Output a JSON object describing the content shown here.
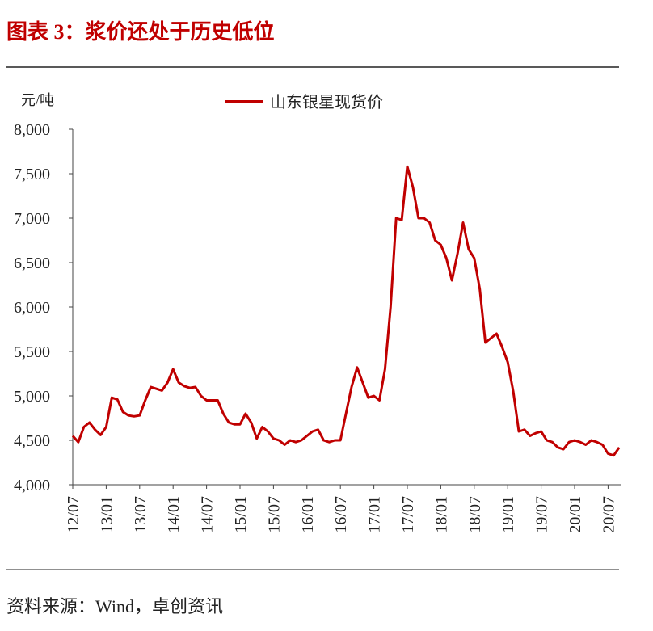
{
  "title": "图表 3：浆价还处于历史低位",
  "source": "资料来源：Wind，卓创资讯",
  "chart_data": {
    "type": "line",
    "y_unit": "元/吨",
    "categories": [
      "12/07",
      null,
      null,
      null,
      null,
      null,
      "13/01",
      null,
      null,
      null,
      null,
      null,
      "13/07",
      null,
      null,
      null,
      null,
      null,
      "14/01",
      null,
      null,
      null,
      null,
      null,
      "14/07",
      null,
      null,
      null,
      null,
      null,
      "15/01",
      null,
      null,
      null,
      null,
      null,
      "15/07",
      null,
      null,
      null,
      null,
      null,
      "16/01",
      null,
      null,
      null,
      null,
      null,
      "16/07",
      null,
      null,
      null,
      null,
      null,
      "17/01",
      null,
      null,
      null,
      null,
      null,
      "17/07",
      null,
      null,
      null,
      null,
      null,
      "18/01",
      null,
      null,
      null,
      null,
      null,
      "18/07",
      null,
      null,
      null,
      null,
      null,
      "19/01",
      null,
      null,
      null,
      null,
      null,
      "19/07",
      null,
      null,
      null,
      null,
      null,
      "20/01",
      null,
      null,
      null,
      null,
      null,
      "20/07",
      null,
      null
    ],
    "series": [
      {
        "name": "山东银星现货价",
        "color": "#c00000",
        "values": [
          4550,
          4480,
          4650,
          4700,
          4620,
          4560,
          4650,
          4980,
          4960,
          4820,
          4780,
          4770,
          4780,
          4950,
          5100,
          5080,
          5060,
          5150,
          5300,
          5150,
          5110,
          5090,
          5100,
          5000,
          4950,
          4950,
          4950,
          4800,
          4700,
          4680,
          4680,
          4800,
          4700,
          4520,
          4650,
          4600,
          4520,
          4500,
          4450,
          4500,
          4480,
          4500,
          4550,
          4600,
          4620,
          4500,
          4480,
          4500,
          4500,
          4800,
          5100,
          5320,
          5150,
          4980,
          5000,
          4950,
          5300,
          6000,
          7000,
          6980,
          7580,
          7350,
          7000,
          7000,
          6950,
          6750,
          6700,
          6550,
          6300,
          6600,
          6950,
          6650,
          6550,
          6200,
          5600,
          5650,
          5700,
          5550,
          5380,
          5050,
          4600,
          4620,
          4550,
          4580,
          4600,
          4500,
          4480,
          4420,
          4400,
          4480,
          4500,
          4480,
          4450,
          4500,
          4480,
          4450,
          4350,
          4330,
          4420
        ]
      }
    ],
    "ylim": [
      4000,
      8000
    ],
    "yticks": [
      {
        "value": 4000,
        "label": "4,000"
      },
      {
        "value": 4500,
        "label": "4,500"
      },
      {
        "value": 5000,
        "label": "5,000"
      },
      {
        "value": 5500,
        "label": "5,500"
      },
      {
        "value": 6000,
        "label": "6,000"
      },
      {
        "value": 6500,
        "label": "6,500"
      },
      {
        "value": 7000,
        "label": "7,000"
      },
      {
        "value": 7500,
        "label": "7,500"
      },
      {
        "value": 8000,
        "label": "8,000"
      }
    ],
    "grid": false,
    "legend": "top"
  }
}
